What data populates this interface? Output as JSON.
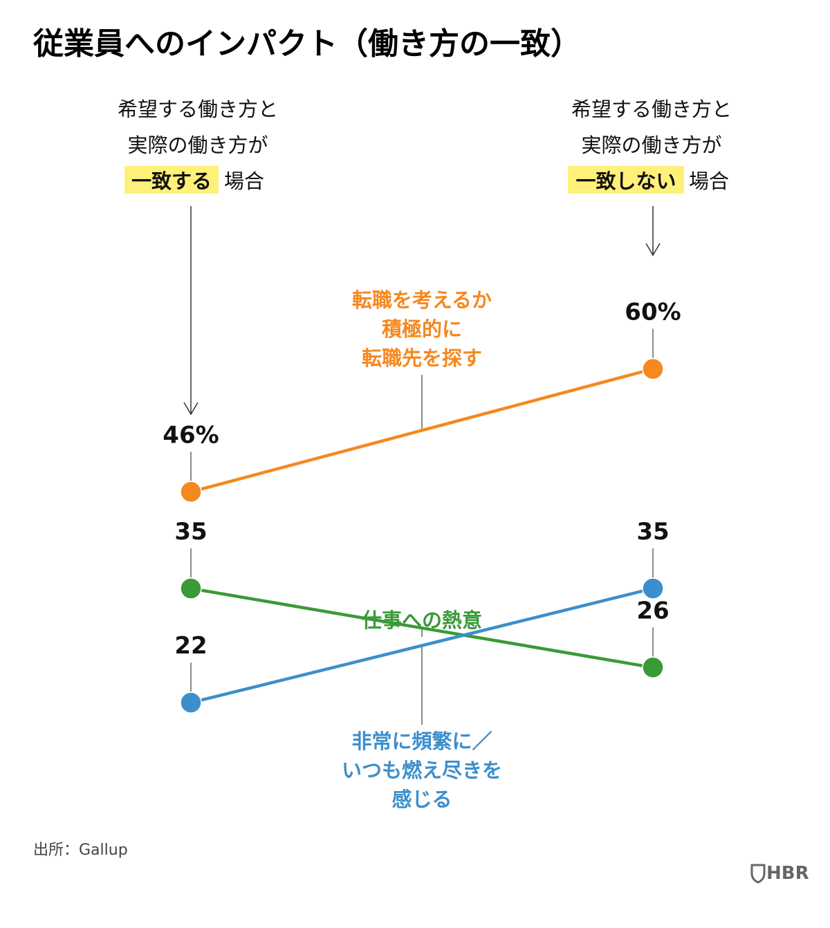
{
  "chart_data": {
    "type": "line",
    "title": "従業員へのインパクト（働き方の一致）",
    "categories": [
      {
        "line1": "希望する働き方と",
        "line2": "実際の働き方が",
        "highlight": "一致する",
        "suffix": "場合"
      },
      {
        "line1": "希望する働き方と",
        "line2": "実際の働き方が",
        "highlight": "一致しない",
        "suffix": "場合"
      }
    ],
    "series": [
      {
        "name_lines": [
          "転職を考えるか",
          "積極的に",
          "転職先を探す"
        ],
        "values": [
          46,
          60
        ],
        "value_labels": [
          "46%",
          "60%"
        ],
        "color": "#F5881F"
      },
      {
        "name_lines": [
          "仕事への熱意"
        ],
        "values": [
          35,
          26
        ],
        "value_labels": [
          "35",
          "26"
        ],
        "color": "#3A9A37"
      },
      {
        "name_lines": [
          "非常に頻繁に／",
          "いつも燃え尽きを",
          "感じる"
        ],
        "values": [
          22,
          35
        ],
        "value_labels": [
          "22",
          "35"
        ],
        "color": "#3C8FCC"
      }
    ],
    "ylim": [
      15,
      65
    ],
    "grid": false,
    "legend": "none",
    "highlight_color": "#FFF07A"
  },
  "source": "出所：Gallup",
  "logo": {
    "text": "HBR",
    "icon": "hbr-shield-icon"
  }
}
